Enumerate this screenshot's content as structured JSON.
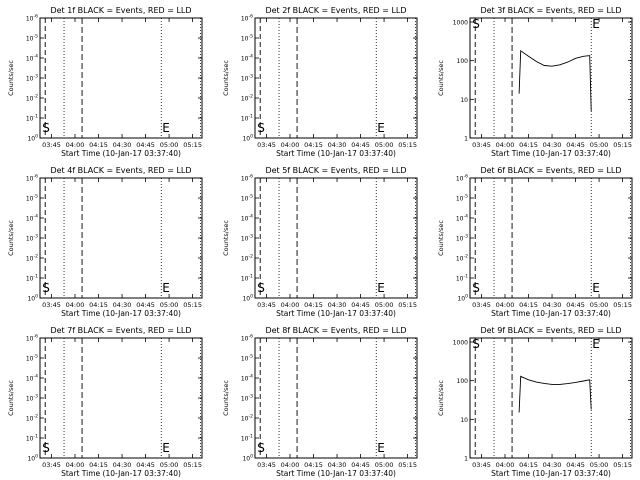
{
  "chart_data": [
    {
      "type": "line",
      "title": "Det 1f BLACK = Events, RED = LLD",
      "xlabel": "Start Time (10-Jan-17 03:37:40)",
      "ylabel": "Counts/sec",
      "x_ticks": [
        "03:45",
        "04:00",
        "04:15",
        "04:30",
        "04:45",
        "05:00",
        "05:15"
      ],
      "y_ticks": [
        "10^0",
        "10^-1",
        "10^-2",
        "10^-3",
        "10^-4",
        "10^-5",
        "10^-6"
      ],
      "markers": [
        "S",
        "E"
      ],
      "series": []
    },
    {
      "type": "line",
      "title": "Det 2f BLACK = Events, RED = LLD",
      "xlabel": "Start Time (10-Jan-17 03:37:40)",
      "ylabel": "Counts/sec",
      "x_ticks": [
        "03:45",
        "04:00",
        "04:15",
        "04:30",
        "04:45",
        "05:00",
        "05:15"
      ],
      "y_ticks": [
        "10^0",
        "10^-1",
        "10^-2",
        "10^-3",
        "10^-4",
        "10^-5",
        "10^-6"
      ],
      "markers": [
        "S",
        "E"
      ],
      "series": []
    },
    {
      "type": "line",
      "title": "Det 3f BLACK = Events, RED = LLD",
      "xlabel": "Start Time (10-Jan-17 03:37:40)",
      "ylabel": "Counts/sec",
      "x_ticks": [
        "03:45",
        "04:00",
        "04:15",
        "04:30",
        "04:45",
        "05:00",
        "05:15"
      ],
      "y_ticks": [
        "1",
        "10",
        "100",
        "1000"
      ],
      "markers": [
        "S",
        "E"
      ],
      "series": [
        {
          "x": [
            "04:09",
            "04:10",
            "04:15",
            "04:20",
            "04:25",
            "04:30",
            "04:35",
            "04:40",
            "04:45",
            "04:50",
            "04:54",
            "04:55"
          ],
          "values": [
            14,
            180,
            130,
            95,
            75,
            72,
            78,
            92,
            115,
            130,
            135,
            5
          ]
        }
      ]
    },
    {
      "type": "line",
      "title": "Det 4f BLACK = Events, RED = LLD",
      "xlabel": "Start Time (10-Jan-17 03:37:40)",
      "ylabel": "Counts/sec",
      "x_ticks": [
        "03:45",
        "04:00",
        "04:15",
        "04:30",
        "04:45",
        "05:00",
        "05:15"
      ],
      "y_ticks": [
        "10^0",
        "10^-1",
        "10^-2",
        "10^-3",
        "10^-4",
        "10^-5",
        "10^-6"
      ],
      "markers": [
        "S",
        "E"
      ],
      "series": []
    },
    {
      "type": "line",
      "title": "Det 5f BLACK = Events, RED = LLD",
      "xlabel": "Start Time (10-Jan-17 03:37:40)",
      "ylabel": "Counts/sec",
      "x_ticks": [
        "03:45",
        "04:00",
        "04:15",
        "04:30",
        "04:45",
        "05:00",
        "05:15"
      ],
      "y_ticks": [
        "10^0",
        "10^-1",
        "10^-2",
        "10^-3",
        "10^-4",
        "10^-5",
        "10^-6"
      ],
      "markers": [
        "S",
        "E"
      ],
      "series": []
    },
    {
      "type": "line",
      "title": "Det 6f BLACK = Events, RED = LLD",
      "xlabel": "Start Time (10-Jan-17 03:37:40)",
      "ylabel": "Counts/sec",
      "x_ticks": [
        "03:45",
        "04:00",
        "04:15",
        "04:30",
        "04:45",
        "05:00",
        "05:15"
      ],
      "y_ticks": [
        "10^0",
        "10^-1",
        "10^-2",
        "10^-3",
        "10^-4",
        "10^-5",
        "10^-6"
      ],
      "markers": [
        "S",
        "E"
      ],
      "series": []
    },
    {
      "type": "line",
      "title": "Det 7f BLACK = Events, RED = LLD",
      "xlabel": "Start Time (10-Jan-17 03:37:40)",
      "ylabel": "Counts/sec",
      "x_ticks": [
        "03:45",
        "04:00",
        "04:15",
        "04:30",
        "04:45",
        "05:00",
        "05:15"
      ],
      "y_ticks": [
        "10^0",
        "10^-1",
        "10^-2",
        "10^-3",
        "10^-4",
        "10^-5",
        "10^-6"
      ],
      "markers": [
        "S",
        "E"
      ],
      "series": []
    },
    {
      "type": "line",
      "title": "Det 8f BLACK = Events, RED = LLD",
      "xlabel": "Start Time (10-Jan-17 03:37:40)",
      "ylabel": "Counts/sec",
      "x_ticks": [
        "03:45",
        "04:00",
        "04:15",
        "04:30",
        "04:45",
        "05:00",
        "05:15"
      ],
      "y_ticks": [
        "10^0",
        "10^-1",
        "10^-2",
        "10^-3",
        "10^-4",
        "10^-5",
        "10^-6"
      ],
      "markers": [
        "S",
        "E"
      ],
      "series": []
    },
    {
      "type": "line",
      "title": "Det 9f BLACK = Events, RED = LLD",
      "xlabel": "Start Time (10-Jan-17 03:37:40)",
      "ylabel": "Counts/sec",
      "x_ticks": [
        "03:45",
        "04:00",
        "04:15",
        "04:30",
        "04:45",
        "05:00",
        "05:15"
      ],
      "y_ticks": [
        "1",
        "10",
        "100",
        "1000"
      ],
      "markers": [
        "S",
        "E"
      ],
      "series": [
        {
          "x": [
            "04:09",
            "04:10",
            "04:15",
            "04:20",
            "04:25",
            "04:30",
            "04:35",
            "04:40",
            "04:45",
            "04:50",
            "04:54",
            "04:55"
          ],
          "values": [
            15,
            130,
            105,
            92,
            85,
            80,
            80,
            84,
            90,
            98,
            105,
            18
          ]
        }
      ]
    }
  ]
}
